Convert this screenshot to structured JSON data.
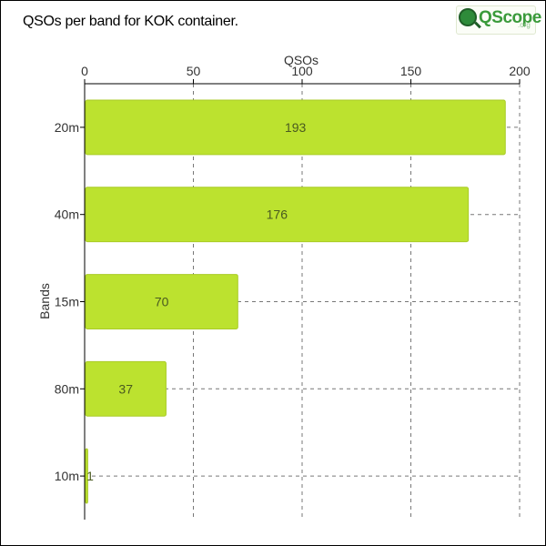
{
  "title": "QSOs per band for KOK container.",
  "logo": {
    "text": "QScope",
    "suffix": ".org"
  },
  "colors": {
    "bar": "#bce22f",
    "barStroke": "#a9cb26",
    "grid": "#777777",
    "text": "#333333"
  },
  "chart_data": {
    "type": "bar",
    "orientation": "horizontal",
    "categories": [
      "20m",
      "40m",
      "15m",
      "80m",
      "10m"
    ],
    "values": [
      193,
      176,
      70,
      37,
      1
    ],
    "xlabel": "QSOs",
    "ylabel": "Bands",
    "xlim": [
      0,
      200
    ],
    "xticks": [
      0,
      50,
      100,
      150,
      200
    ],
    "x_axis_position": "top",
    "grid": true,
    "data_labels": true
  }
}
